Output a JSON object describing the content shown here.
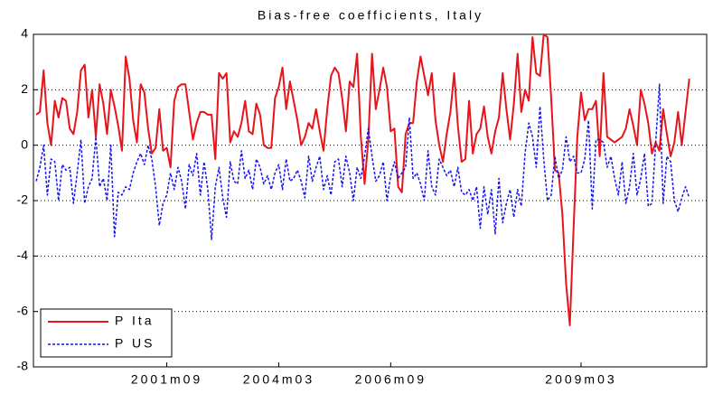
{
  "chart_data": {
    "type": "line",
    "title": "Bias-free coefficients, Italy",
    "categories": [
      null,
      null,
      null,
      null,
      null,
      null,
      null,
      null,
      null,
      null,
      null,
      null,
      null,
      null,
      null,
      null,
      null,
      null,
      null,
      null,
      null,
      null,
      null,
      null,
      null,
      null,
      null,
      null,
      null,
      null,
      null,
      null,
      null,
      null,
      null,
      "2001m09",
      null,
      null,
      null,
      null,
      null,
      null,
      null,
      null,
      null,
      null,
      null,
      null,
      null,
      null,
      null,
      null,
      null,
      null,
      null,
      null,
      null,
      null,
      null,
      null,
      null,
      null,
      null,
      null,
      null,
      "2004m03",
      null,
      null,
      null,
      null,
      null,
      null,
      null,
      null,
      null,
      null,
      null,
      null,
      null,
      null,
      null,
      null,
      null,
      null,
      null,
      null,
      null,
      null,
      null,
      null,
      null,
      null,
      null,
      null,
      null,
      "2006m09",
      null,
      null,
      null,
      null,
      null,
      null,
      null,
      null,
      null,
      null,
      null,
      null,
      null,
      null,
      null,
      null,
      null,
      null,
      null,
      null,
      null,
      null,
      null,
      null,
      null,
      null,
      null,
      null,
      null,
      null,
      null,
      null,
      null,
      null,
      null,
      null,
      null,
      null,
      null,
      null,
      null,
      null,
      null,
      null,
      null,
      null,
      null,
      null,
      null,
      null,
      "2009m03",
      null,
      null,
      null,
      null,
      null,
      null,
      null,
      null,
      null,
      null,
      null,
      null,
      null,
      null,
      null,
      null,
      null,
      null,
      null,
      null,
      null,
      null,
      null,
      null,
      null,
      null,
      null,
      null,
      null
    ],
    "series": [
      {
        "name": "P Ita",
        "color": "#e8141c",
        "dash": false,
        "values": [
          1.1,
          1.2,
          2.7,
          0.8,
          0.0,
          1.6,
          1.0,
          1.7,
          1.6,
          0.6,
          0.4,
          1.2,
          2.7,
          2.9,
          1.0,
          2.0,
          0.3,
          2.2,
          1.5,
          0.4,
          2.0,
          1.4,
          0.7,
          -0.2,
          3.2,
          2.4,
          0.9,
          0.1,
          2.2,
          1.9,
          0.6,
          -0.3,
          -0.1,
          1.3,
          -0.2,
          -0.1,
          -0.8,
          1.6,
          2.1,
          2.2,
          2.2,
          1.2,
          0.2,
          0.8,
          1.2,
          1.2,
          1.1,
          1.1,
          -0.5,
          2.6,
          2.4,
          2.6,
          0.1,
          0.5,
          0.3,
          0.8,
          1.6,
          0.5,
          0.4,
          1.5,
          1.1,
          0.0,
          -0.1,
          -0.1,
          1.7,
          2.1,
          2.8,
          1.3,
          2.3,
          1.6,
          0.9,
          0.0,
          0.3,
          0.8,
          0.6,
          1.3,
          0.5,
          -0.2,
          1.3,
          2.5,
          2.8,
          2.6,
          1.7,
          0.5,
          2.3,
          2.1,
          3.3,
          0.3,
          -1.4,
          0.2,
          3.3,
          1.3,
          2.0,
          2.8,
          2.1,
          0.5,
          0.6,
          -1.5,
          -1.7,
          0.4,
          0.8,
          0.8,
          2.3,
          3.2,
          2.5,
          1.8,
          2.6,
          0.9,
          0.0,
          -0.6,
          0.4,
          1.2,
          2.6,
          0.7,
          -0.6,
          -0.5,
          1.6,
          -0.3,
          0.4,
          0.6,
          1.4,
          0.3,
          -0.3,
          0.5,
          1.0,
          2.6,
          1.3,
          0.2,
          1.5,
          3.3,
          1.2,
          2.0,
          1.6,
          3.9,
          2.6,
          2.5,
          4.0,
          3.9,
          1.7,
          -0.9,
          -1.0,
          -2.5,
          -5.0,
          -6.5,
          -3.0,
          0.3,
          1.9,
          0.9,
          1.3,
          1.3,
          1.6,
          -0.4,
          2.6,
          0.3,
          0.2,
          0.1,
          0.2,
          0.3,
          0.6,
          1.3,
          0.7,
          0.0,
          2.0,
          1.5,
          0.8,
          -0.3,
          0.1,
          -0.2,
          1.3,
          0.4,
          -0.4,
          0.1,
          1.2,
          0.0,
          1.2,
          2.4
        ]
      },
      {
        "name": "P US",
        "color": "#1414f0",
        "dash": true,
        "values": [
          -1.3,
          -0.8,
          0.0,
          -1.8,
          -0.5,
          -0.6,
          -2.0,
          -0.7,
          -0.9,
          -0.8,
          -2.1,
          -1.0,
          0.2,
          -2.1,
          -1.5,
          -1.2,
          0.3,
          -1.5,
          -1.2,
          -2.0,
          0.0,
          -3.3,
          -1.7,
          -1.8,
          -1.5,
          -1.6,
          -1.0,
          -0.6,
          -0.3,
          -0.7,
          0.0,
          -0.5,
          -1.5,
          -2.9,
          -2.1,
          -1.8,
          -1.0,
          -1.6,
          -0.8,
          -1.3,
          -2.3,
          -0.7,
          -1.1,
          -0.3,
          -1.8,
          -0.6,
          -1.6,
          -3.4,
          -1.5,
          -0.8,
          -1.9,
          -2.6,
          -0.6,
          -1.3,
          -1.4,
          -0.2,
          -1.2,
          -0.9,
          -1.6,
          -0.5,
          -0.8,
          -1.4,
          -1.1,
          -1.6,
          -1.0,
          -0.7,
          -1.6,
          -0.5,
          -1.3,
          -1.2,
          -0.9,
          -1.3,
          -1.9,
          -0.4,
          -1.3,
          -0.8,
          -0.4,
          -1.6,
          -1.1,
          -1.8,
          -0.6,
          -0.5,
          -1.5,
          -0.4,
          -1.0,
          -2.0,
          -0.8,
          -1.2,
          -0.4,
          0.6,
          -0.4,
          -1.3,
          -1.1,
          -0.6,
          -2.0,
          -1.1,
          -0.6,
          -1.2,
          -1.0,
          -0.8,
          1.0,
          -1.2,
          -1.0,
          -1.4,
          -2.0,
          -0.2,
          -1.5,
          -1.8,
          -0.5,
          -0.8,
          -1.1,
          -0.9,
          -1.5,
          -0.8,
          -1.7,
          -1.8,
          -1.6,
          -2.0,
          -1.5,
          -3.0,
          -1.5,
          -2.5,
          -1.6,
          -3.2,
          -1.2,
          -2.8,
          -2.1,
          -1.6,
          -2.6,
          -1.6,
          -2.2,
          -0.3,
          0.8,
          0.3,
          -0.8,
          1.4,
          -0.5,
          -2.0,
          -1.8,
          -0.4,
          -1.2,
          -0.9,
          0.3,
          -0.6,
          -0.4,
          -1.0,
          -1.0,
          -0.5,
          0.9,
          -2.3,
          0.2,
          0.2,
          0.1,
          -0.8,
          -0.4,
          -1.2,
          -1.8,
          -0.6,
          -2.1,
          -1.5,
          -0.3,
          -1.8,
          -1.2,
          -0.3,
          -2.2,
          -2.1,
          0.1,
          2.2,
          -2.1,
          -0.4,
          -0.6,
          -2.0,
          -2.4,
          -1.9,
          -1.5,
          -1.9
        ]
      }
    ],
    "ylim": [
      -8,
      4
    ],
    "yticks": [
      -8,
      -6,
      -4,
      -2,
      0,
      2,
      4
    ],
    "grid": true,
    "legend": "lower left"
  }
}
